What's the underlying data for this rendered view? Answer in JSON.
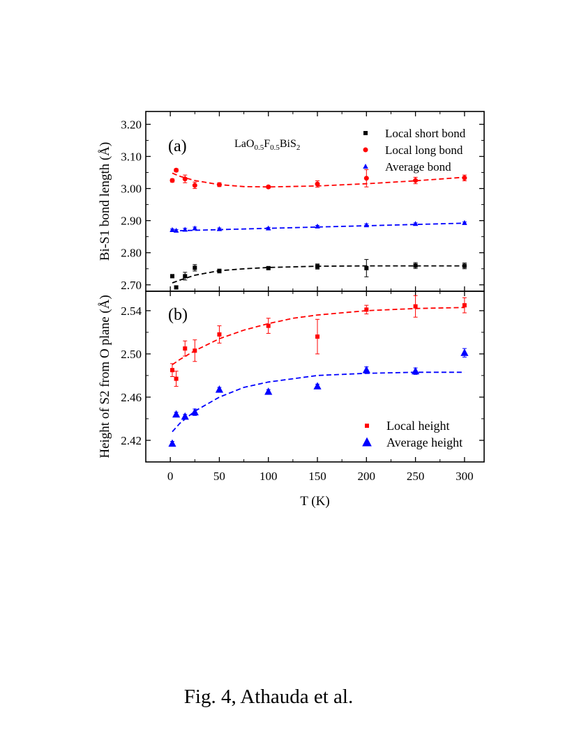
{
  "chart_data": [
    {
      "type": "scatter",
      "panel_label": "(a)",
      "compound": {
        "base": "LaO",
        "sub1": "0.5",
        "mid": "F",
        "sub2": "0.5",
        "tail": "BiS",
        "sub3": "2"
      },
      "ylabel": "Bi-S1 bond length (Å)",
      "ylim": [
        2.68,
        3.24
      ],
      "yticks": [
        "2.70",
        "2.80",
        "2.90",
        "3.00",
        "3.10",
        "3.20"
      ],
      "xlim": [
        -25,
        320
      ],
      "legend_position": "top-right",
      "series": [
        {
          "name": "Local short bond",
          "marker": "square",
          "color": "#000000",
          "x": [
            2,
            6,
            15,
            25,
            50,
            100,
            150,
            200,
            250,
            300
          ],
          "y": [
            2.727,
            2.692,
            2.727,
            2.753,
            2.743,
            2.752,
            2.757,
            2.752,
            2.76,
            2.759
          ],
          "err": [
            0.005,
            0.005,
            0.012,
            0.01,
            0.006,
            0.004,
            0.008,
            0.027,
            0.009,
            0.009
          ],
          "fit": [
            [
              2,
              2.706
            ],
            [
              10,
              2.715
            ],
            [
              25,
              2.73
            ],
            [
              50,
              2.744
            ],
            [
              75,
              2.75
            ],
            [
              100,
              2.754
            ],
            [
              150,
              2.758
            ],
            [
              200,
              2.759
            ],
            [
              250,
              2.759
            ],
            [
              300,
              2.759
            ]
          ]
        },
        {
          "name": "Local long bond",
          "marker": "circle",
          "color": "#ff0000",
          "x": [
            2,
            6,
            15,
            25,
            50,
            100,
            150,
            200,
            250,
            300
          ],
          "y": [
            3.025,
            3.057,
            3.03,
            3.01,
            3.012,
            3.005,
            3.014,
            3.032,
            3.025,
            3.033
          ],
          "err": [
            0.005,
            0.005,
            0.012,
            0.01,
            0.006,
            0.004,
            0.01,
            0.027,
            0.01,
            0.009
          ],
          "fit": [
            [
              2,
              3.048
            ],
            [
              10,
              3.038
            ],
            [
              25,
              3.025
            ],
            [
              50,
              3.012
            ],
            [
              75,
              3.006
            ],
            [
              100,
              3.005
            ],
            [
              150,
              3.008
            ],
            [
              200,
              3.015
            ],
            [
              250,
              3.024
            ],
            [
              300,
              3.035
            ]
          ]
        },
        {
          "name": "Average bond",
          "marker": "triangle",
          "color": "#0000ff",
          "x": [
            2,
            6,
            15,
            25,
            50,
            100,
            150,
            200,
            250,
            300
          ],
          "y": [
            2.871,
            2.869,
            2.872,
            2.876,
            2.874,
            2.876,
            2.882,
            2.886,
            2.89,
            2.893
          ],
          "err": [
            0.003,
            0.003,
            0.004,
            0.004,
            0.003,
            0.003,
            0.003,
            0.004,
            0.003,
            0.003
          ],
          "fit": [
            [
              2,
              2.868
            ],
            [
              100,
              2.876
            ],
            [
              200,
              2.884
            ],
            [
              300,
              2.892
            ]
          ]
        }
      ]
    },
    {
      "type": "scatter",
      "panel_label": "(b)",
      "ylabel": "Height of S2 from O plane (Å)",
      "ylim": [
        2.4,
        2.558
      ],
      "yticks": [
        "2.42",
        "2.46",
        "2.50",
        "2.54"
      ],
      "xlabel": "T (K)",
      "xlim": [
        -25,
        320
      ],
      "xticks": [
        "0",
        "50",
        "100",
        "150",
        "200",
        "250",
        "300"
      ],
      "legend_position": "bottom-right",
      "series": [
        {
          "name": "Local height",
          "marker": "square",
          "color": "#ff0000",
          "x": [
            2,
            6,
            15,
            25,
            50,
            100,
            150,
            200,
            250,
            300
          ],
          "y": [
            2.485,
            2.477,
            2.505,
            2.503,
            2.518,
            2.526,
            2.516,
            2.541,
            2.544,
            2.545
          ],
          "err": [
            0.006,
            0.007,
            0.007,
            0.01,
            0.008,
            0.007,
            0.016,
            0.004,
            0.01,
            0.007
          ],
          "fit": [
            [
              2,
              2.49
            ],
            [
              10,
              2.495
            ],
            [
              25,
              2.503
            ],
            [
              50,
              2.514
            ],
            [
              75,
              2.522
            ],
            [
              100,
              2.528
            ],
            [
              125,
              2.533
            ],
            [
              150,
              2.536
            ],
            [
              200,
              2.54
            ],
            [
              250,
              2.542
            ],
            [
              300,
              2.543
            ]
          ]
        },
        {
          "name": "Average height",
          "marker": "triangle",
          "color": "#0000ff",
          "x": [
            2,
            6,
            15,
            25,
            50,
            100,
            150,
            200,
            250,
            300
          ],
          "y": [
            2.417,
            2.444,
            2.442,
            2.446,
            2.467,
            2.465,
            2.47,
            2.485,
            2.484,
            2.501
          ],
          "err": [
            0.002,
            0.002,
            0.002,
            0.003,
            0.002,
            0.002,
            0.002,
            0.003,
            0.003,
            0.004
          ],
          "fit": [
            [
              2,
              2.428
            ],
            [
              10,
              2.436
            ],
            [
              25,
              2.447
            ],
            [
              50,
              2.46
            ],
            [
              75,
              2.469
            ],
            [
              100,
              2.474
            ],
            [
              125,
              2.477
            ],
            [
              150,
              2.48
            ],
            [
              200,
              2.482
            ],
            [
              250,
              2.483
            ],
            [
              300,
              2.483
            ]
          ]
        }
      ]
    }
  ],
  "caption": "Fig. 4, Athauda et al."
}
